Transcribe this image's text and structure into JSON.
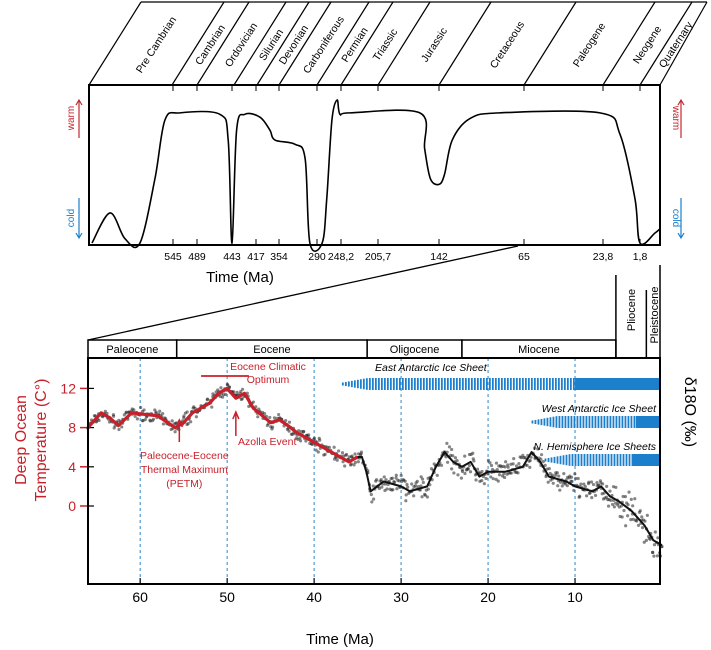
{
  "chart_data": [
    {
      "type": "line",
      "panel": "top",
      "periods": [
        "Pre Cambrian",
        "Cambrian",
        "Ordovician",
        "Silurian",
        "Devonian",
        "Carboniferous",
        "Permian",
        "Triassic",
        "Jurassic",
        "Cretaceous",
        "Paleogene",
        "Neogene",
        "Quaternary"
      ],
      "xlabel": "Time (Ma)",
      "x_tick_labels": [
        "545",
        "489",
        "443",
        "417",
        "354",
        "290",
        "248,2",
        "205,7",
        "142",
        "65",
        "23,8",
        "1,8"
      ],
      "y_top_label": "warm",
      "y_bottom_label": "cold",
      "warm_color": "#c0272d",
      "cold_color": "#1b7fcc",
      "climate_state": {
        "x_units": "Ma",
        "y_units": "relative (0 = cold, 1 = warm)",
        "points": [
          [
            3877,
            0
          ],
          [
            3137,
            0.21
          ],
          [
            2520,
            0.03
          ],
          [
            1904,
            0
          ],
          [
            1287,
            0.45
          ],
          [
            876,
            0.86
          ],
          [
            529,
            0.91
          ],
          [
            459,
            0.9
          ],
          [
            448,
            0.72
          ],
          [
            443,
            0
          ],
          [
            438,
            0.79
          ],
          [
            429,
            0.9
          ],
          [
            406,
            0.88
          ],
          [
            379,
            0.79
          ],
          [
            365,
            0.72
          ],
          [
            327,
            0.69
          ],
          [
            310,
            0.59
          ],
          [
            302,
            0
          ],
          [
            281,
            0
          ],
          [
            273,
            0.31
          ],
          [
            264,
            0.86
          ],
          [
            255,
            1.0
          ],
          [
            250,
            0.9
          ],
          [
            238,
            0.91
          ],
          [
            162,
            0.91
          ],
          [
            157,
            0.66
          ],
          [
            151,
            0.45
          ],
          [
            142,
            0.41
          ],
          [
            137,
            0.48
          ],
          [
            130,
            0.72
          ],
          [
            114,
            0.87
          ],
          [
            87,
            0.91
          ],
          [
            25.4,
            0.91
          ],
          [
            13.7,
            0.76
          ],
          [
            4.8,
            0.31
          ],
          [
            1.8,
            0
          ],
          [
            0.45,
            0.07
          ],
          [
            0,
            0.1
          ]
        ]
      }
    },
    {
      "type": "line",
      "panel": "bottom",
      "epochs": [
        {
          "name": "Paleocene",
          "from": 66,
          "to": 55.8
        },
        {
          "name": "Eocene",
          "from": 55.8,
          "to": 33.9
        },
        {
          "name": "Oligocene",
          "from": 33.9,
          "to": 23
        },
        {
          "name": "Miocene",
          "from": 23,
          "to": 5.3
        },
        {
          "name": "Pliocene",
          "from": 5.3,
          "to": 1.8
        },
        {
          "name": "Pleistocene",
          "from": 1.8,
          "to": 0
        }
      ],
      "xlabel": "Time (Ma)",
      "ylabel": "Deep Ocean Temperature (C°)",
      "y2label": "δ18O (‰)",
      "xlim": [
        66,
        0
      ],
      "ylim": [
        -12,
        15
      ],
      "x_ticks": [
        60,
        50,
        40,
        30,
        20,
        10
      ],
      "y_ticks": [
        12,
        8,
        4,
        0
      ],
      "grid": "vertical dashed blue at x ticks",
      "series": [
        {
          "color": "#c8202a",
          "x": [
            66,
            64.5,
            63.5,
            62.5,
            61,
            58,
            56,
            55,
            54,
            52,
            51,
            50,
            49,
            48,
            47,
            45,
            44,
            43,
            42,
            40,
            38,
            36,
            35
          ],
          "y": [
            8,
            9.5,
            9,
            8.2,
            9.5,
            9.2,
            8,
            8.5,
            9.5,
            10.5,
            11.5,
            12,
            11,
            11.5,
            10,
            8.5,
            8.8,
            8.2,
            7.5,
            6.5,
            5.5,
            4.5,
            5
          ]
        },
        {
          "color": "#111111",
          "x": [
            35,
            34.5,
            34,
            33.5,
            32,
            30,
            29,
            27,
            26,
            25,
            24,
            23,
            22,
            21,
            20,
            18,
            16,
            15,
            14,
            13,
            11,
            10,
            8,
            7,
            6,
            5,
            3.5,
            2,
            1,
            0
          ],
          "y": [
            5,
            5,
            3.5,
            1.5,
            2.5,
            2,
            1.5,
            2,
            4,
            5.5,
            4.5,
            4,
            4.5,
            3,
            3.5,
            3.5,
            4,
            5.5,
            4.5,
            3,
            2.5,
            2,
            1.5,
            2,
            1,
            0.5,
            -0.5,
            -2,
            -3.5,
            -4
          ]
        }
      ],
      "annotations": [
        {
          "text": [
            "Paleocene-Eocene",
            "Thermal Maximum",
            "(PETM)"
          ],
          "x": 55.5,
          "color": "#c8202a"
        },
        {
          "text": [
            "Eocene Climatic",
            "Optimum"
          ],
          "from": 53,
          "to": 47.5,
          "color": "#c8202a"
        },
        {
          "text": [
            "Azolla Event"
          ],
          "x": 49,
          "color": "#c8202a"
        }
      ],
      "ice_sheets": [
        {
          "name": "East Antarctic Ice Sheet",
          "partial_from": 36.8,
          "full_from": 10,
          "color": "#1b7fcc"
        },
        {
          "name": "West Antarctic Ice Sheet",
          "partial_from": 15,
          "full_from": 3,
          "color": "#1b7fcc"
        },
        {
          "name": "N. Hemisphere Ice Sheets",
          "partial_from": 13.5,
          "full_from": 3.5,
          "color": "#1b7fcc"
        }
      ]
    }
  ]
}
